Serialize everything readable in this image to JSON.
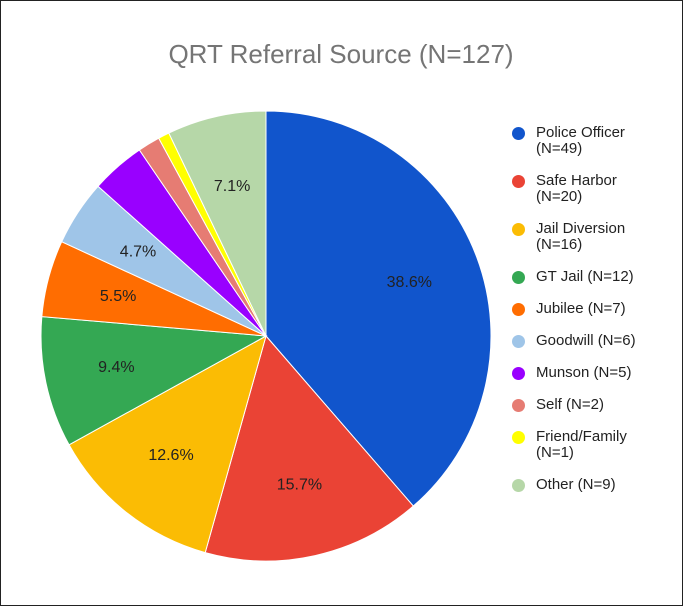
{
  "chart_data": {
    "type": "pie",
    "title": "QRT Referral Source (N=127)",
    "categories": [
      "Police Officer (N=49)",
      "Safe Harbor (N=20)",
      "Jail Diversion (N=16)",
      "GT Jail (N=12)",
      "Jubilee (N=7)",
      "Goodwill (N=6)",
      "Munson (N=5)",
      "Self (N=2)",
      "Friend/Family (N=1)",
      "Other (N=9)"
    ],
    "values": [
      38.6,
      15.7,
      12.6,
      9.4,
      5.5,
      4.7,
      3.9,
      1.6,
      0.8,
      7.1
    ],
    "value_labels": [
      "38.6%",
      "15.7%",
      "12.6%",
      "9.4%",
      "5.5%",
      "4.7%",
      null,
      null,
      null,
      "7.1%"
    ],
    "colors": [
      "#1155cc",
      "#ea4335",
      "#fbbc04",
      "#34a853",
      "#ff6d01",
      "#9fc5e8",
      "#9900ff",
      "#e67c73",
      "#ffff00",
      "#b6d7a8"
    ],
    "legend": "right"
  }
}
